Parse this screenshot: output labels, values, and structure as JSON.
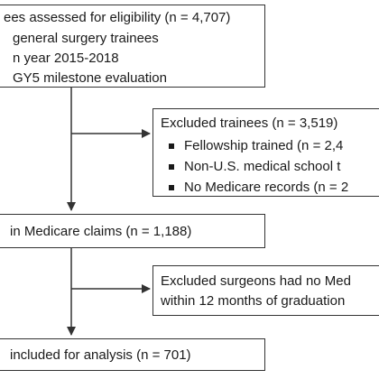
{
  "assessed": {
    "line1": "ees assessed for eligibility (n = 4,707)",
    "line2": "general surgery trainees",
    "line3": "n year 2015-2018",
    "line4": "GY5 milestone evaluation"
  },
  "excluded_trainees": {
    "heading": "Excluded trainees (n = 3,519)",
    "items": [
      "Fellowship trained (n = 2,4",
      "Non-U.S. medical school t",
      "No Medicare records (n = 2"
    ]
  },
  "medicare": {
    "text": "in Medicare claims (n = 1,188)"
  },
  "excluded_surgeons": {
    "line1": "Excluded surgeons had no Med",
    "line2": "within 12 months of graduation"
  },
  "analysis": {
    "text": "included for analysis (n = 701)"
  }
}
